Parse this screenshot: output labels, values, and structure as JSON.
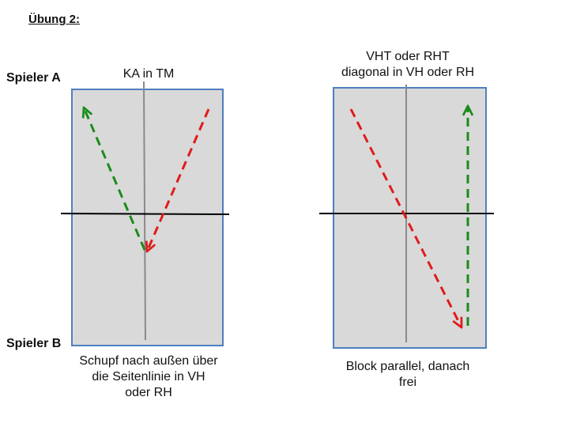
{
  "title": "Übung 2:",
  "players": {
    "a": "Spieler A",
    "b": "Spieler B"
  },
  "diagram1": {
    "top_caption": "KA in TM",
    "bottom_caption": [
      "Schupf nach außen über",
      "die Seitenlinie in VH",
      "oder RH"
    ]
  },
  "diagram2": {
    "top_caption": [
      "VHT oder RHT",
      "diagonal in VH oder RH"
    ],
    "bottom_caption": [
      "Block parallel, danach",
      "frei"
    ]
  },
  "colors": {
    "table_fill": "#d9d9d9",
    "table_border": "#4f7fbf",
    "green_arrow": "#1a8c1a",
    "red_arrow": "#e01b1b",
    "center_line": "#8a8a8a",
    "net_line": "#000000"
  }
}
